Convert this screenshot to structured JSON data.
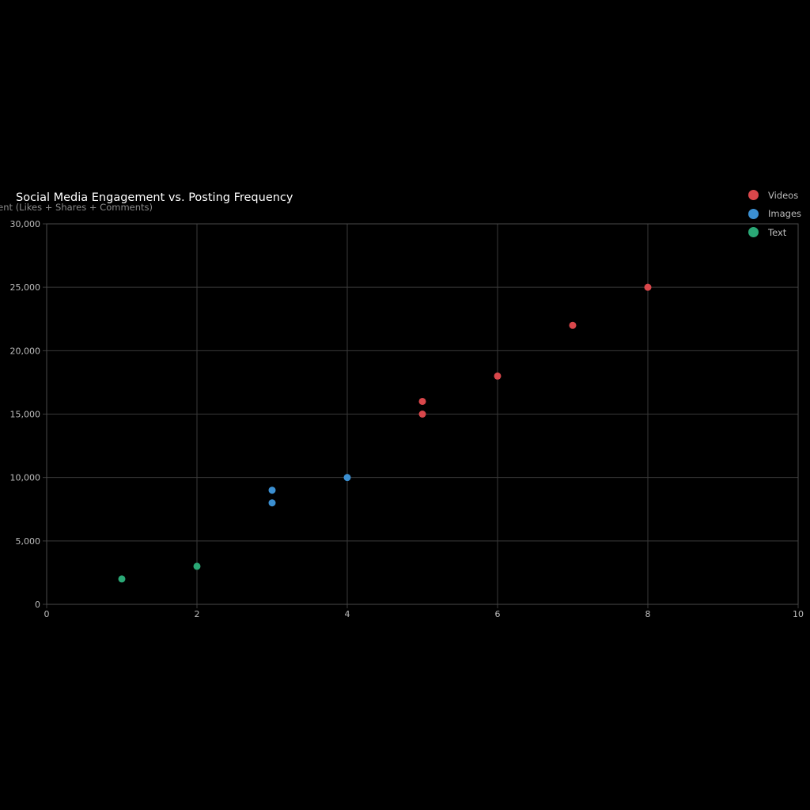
{
  "chart_data": {
    "type": "scatter",
    "title": "Social Media Engagement vs. Posting Frequency",
    "ylabel": "ment (Likes + Shares + Comments)",
    "xlabel": "",
    "xlim": [
      0,
      10
    ],
    "ylim": [
      0,
      30000
    ],
    "xticks": [
      0,
      2,
      4,
      6,
      8,
      10
    ],
    "yticks": [
      0,
      5000,
      10000,
      15000,
      20000,
      25000,
      30000
    ],
    "ytick_labels": [
      "0",
      "5,000",
      "10,000",
      "15,000",
      "20,000",
      "25,000",
      "30,000"
    ],
    "grid": true,
    "legend_position": "top-right",
    "series": [
      {
        "name": "Videos",
        "color": "#d9474b",
        "points": [
          [
            5,
            15000
          ],
          [
            5,
            16000
          ],
          [
            6,
            18000
          ],
          [
            7,
            22000
          ],
          [
            8,
            25000
          ]
        ]
      },
      {
        "name": "Images",
        "color": "#3b8fd1",
        "points": [
          [
            3,
            8000
          ],
          [
            3,
            9000
          ],
          [
            4,
            10000
          ]
        ]
      },
      {
        "name": "Text",
        "color": "#2aa876",
        "points": [
          [
            1,
            2000
          ],
          [
            2,
            3000
          ]
        ]
      }
    ]
  }
}
